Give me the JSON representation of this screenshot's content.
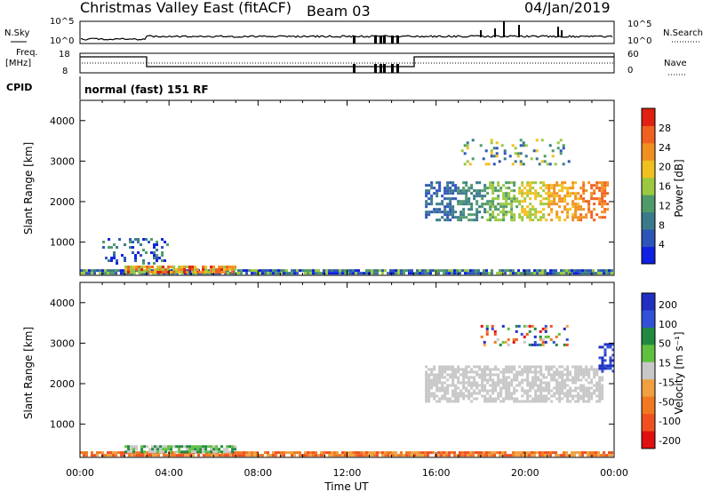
{
  "header": {
    "title": "Christmas Valley East (fitACF)",
    "beam": "Beam 03",
    "date": "04/Jan/2019"
  },
  "top_panels": {
    "nsky_label": "N.Sky",
    "nsky_ticks": [
      "10^5",
      "10^0"
    ],
    "nsearch_label": "N.Search",
    "nsearch_ticks": [
      "10^5",
      "10^0"
    ],
    "freq_label": "Freq.",
    "freq_unit": "[MHz]",
    "freq_ticks": [
      "18",
      "8"
    ],
    "nave_label": "Nave",
    "nave_ticks": [
      "60",
      "0"
    ],
    "cpid_label": "CPID",
    "cpid_text": "normal (fast) 151 RF"
  },
  "chart_data": [
    {
      "type": "heatmap",
      "name": "power",
      "ylabel": "Slant Range [km]",
      "yticks": [
        1000,
        2000,
        3000,
        4000
      ],
      "ylim": [
        180,
        4500
      ],
      "xlim": [
        0,
        24
      ],
      "colorbar_label": "Power [dB]",
      "colorbar_ticks": [
        4,
        8,
        12,
        16,
        20,
        24,
        28
      ],
      "colorbar_range": [
        0,
        32
      ],
      "colors": [
        "#1020e0",
        "#2d55b8",
        "#3a7a8a",
        "#4f9a6a",
        "#9bc840",
        "#f0c020",
        "#f09020",
        "#f06020",
        "#e02010"
      ]
    },
    {
      "type": "heatmap",
      "name": "velocity",
      "ylabel": "Slant Range [km]",
      "yticks": [
        1000,
        2000,
        3000,
        4000
      ],
      "ylim": [
        180,
        4500
      ],
      "xlim": [
        0,
        24
      ],
      "xlabel": "Time UT",
      "xticks": [
        "00:00",
        "04:00",
        "08:00",
        "12:00",
        "16:00",
        "20:00",
        "00:00"
      ],
      "colorbar_label": "Velocity [m s⁻¹]",
      "colorbar_ticks": [
        "200",
        "100",
        "50",
        "15",
        "-15",
        "-50",
        "-100",
        "-200"
      ],
      "colors": [
        "#2030c0",
        "#3050d8",
        "#208a40",
        "#60c040",
        "#c8c8c8",
        "#f0a040",
        "#f07820",
        "#f05020",
        "#e01010"
      ]
    }
  ]
}
